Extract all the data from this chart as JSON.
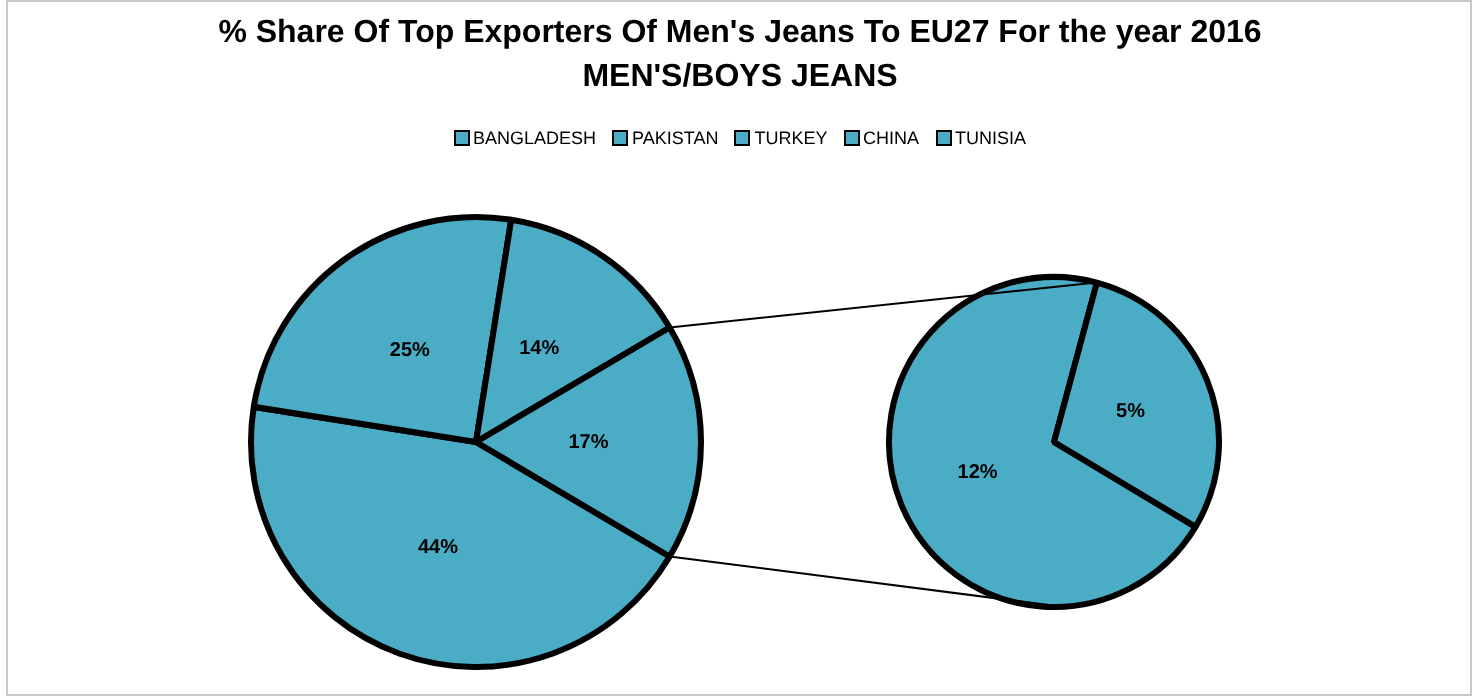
{
  "chart_data": [
    {
      "type": "pie",
      "title": "% Share Of Top Exporters Of Men's Jeans To EU27 For the year 2016 MEN'S/BOYS JEANS",
      "legend": "top",
      "categories": [
        "BANGLADESH",
        "PAKISTAN",
        "TURKEY",
        null
      ],
      "values": [
        44,
        25,
        14,
        17
      ],
      "colors": [
        "#4bacc6",
        "#4bacc6",
        "#4bacc6",
        "#4bacc6"
      ],
      "value_labels": [
        "44%",
        "25%",
        "14%",
        "17%"
      ]
    },
    {
      "type": "pie",
      "legend": "top",
      "categories": [
        "CHINA",
        "TUNISIA"
      ],
      "values": [
        12,
        5
      ],
      "colors": [
        "#4bacc6",
        "#4bacc6"
      ],
      "value_labels": [
        "12%",
        "5%"
      ]
    }
  ]
}
